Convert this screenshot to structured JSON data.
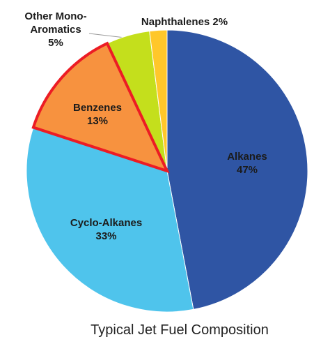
{
  "chart_data": {
    "type": "pie",
    "title": "Typical Jet Fuel Composition",
    "categories": [
      "Alkanes",
      "Cyclo-Alkanes",
      "Benzenes",
      "Other Mono-Aromatics",
      "Naphthalenes"
    ],
    "values": [
      47,
      33,
      13,
      5,
      2
    ],
    "value_labels": [
      "47%",
      "33%",
      "13%",
      "5%",
      "2%"
    ],
    "colors": [
      "#2f55a4",
      "#4fc4ec",
      "#f7923f",
      "#c4df1c",
      "#ffc72a"
    ],
    "highlight": "Benzenes",
    "highlight_color": "#ec1c24"
  }
}
